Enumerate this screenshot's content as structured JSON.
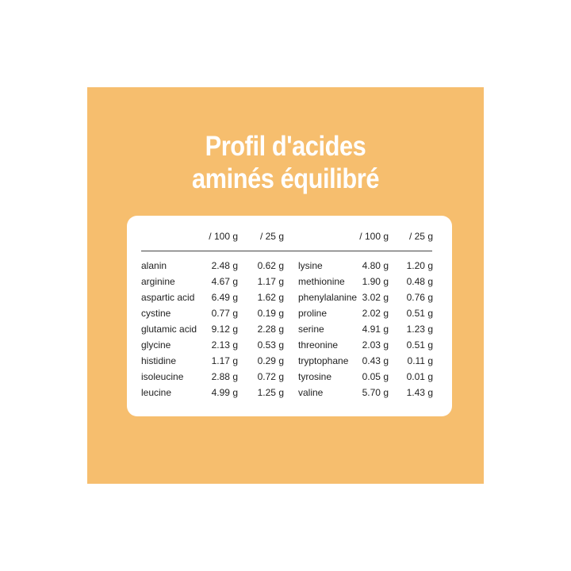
{
  "title": [
    "Profil d'acides",
    "aminés équilibré"
  ],
  "colors": {
    "background": "#f6be6e",
    "card": "#ffffff",
    "title": "#ffffff"
  },
  "table": {
    "headers": {
      "per100": "/ 100 g",
      "per25": "/ 25 g"
    },
    "left": [
      {
        "name": "alanin",
        "per100": "2.48 g",
        "per25": "0.62 g"
      },
      {
        "name": "arginine",
        "per100": "4.67 g",
        "per25": "1.17 g"
      },
      {
        "name": "aspartic acid",
        "per100": "6.49 g",
        "per25": "1.62 g"
      },
      {
        "name": "cystine",
        "per100": "0.77 g",
        "per25": "0.19 g"
      },
      {
        "name": "glutamic acid",
        "per100": "9.12 g",
        "per25": "2.28 g"
      },
      {
        "name": "glycine",
        "per100": "2.13 g",
        "per25": "0.53 g"
      },
      {
        "name": "histidine",
        "per100": "1.17 g",
        "per25": "0.29 g"
      },
      {
        "name": "isoleucine",
        "per100": "2.88 g",
        "per25": "0.72 g"
      },
      {
        "name": "leucine",
        "per100": "4.99 g",
        "per25": "1.25 g"
      }
    ],
    "right": [
      {
        "name": "lysine",
        "per100": "4.80 g",
        "per25": "1.20 g"
      },
      {
        "name": "methionine",
        "per100": "1.90 g",
        "per25": "0.48 g"
      },
      {
        "name": "phenylalanine",
        "per100": "3.02 g",
        "per25": "0.76 g"
      },
      {
        "name": "proline",
        "per100": "2.02 g",
        "per25": "0.51 g"
      },
      {
        "name": "serine",
        "per100": "4.91 g",
        "per25": "1.23 g"
      },
      {
        "name": "threonine",
        "per100": "2.03 g",
        "per25": "0.51 g"
      },
      {
        "name": "tryptophane",
        "per100": "0.43 g",
        "per25": "0.11 g"
      },
      {
        "name": "tyrosine",
        "per100": "0.05 g",
        "per25": "0.01 g"
      },
      {
        "name": "valine",
        "per100": "5.70 g",
        "per25": "1.43 g"
      }
    ]
  }
}
